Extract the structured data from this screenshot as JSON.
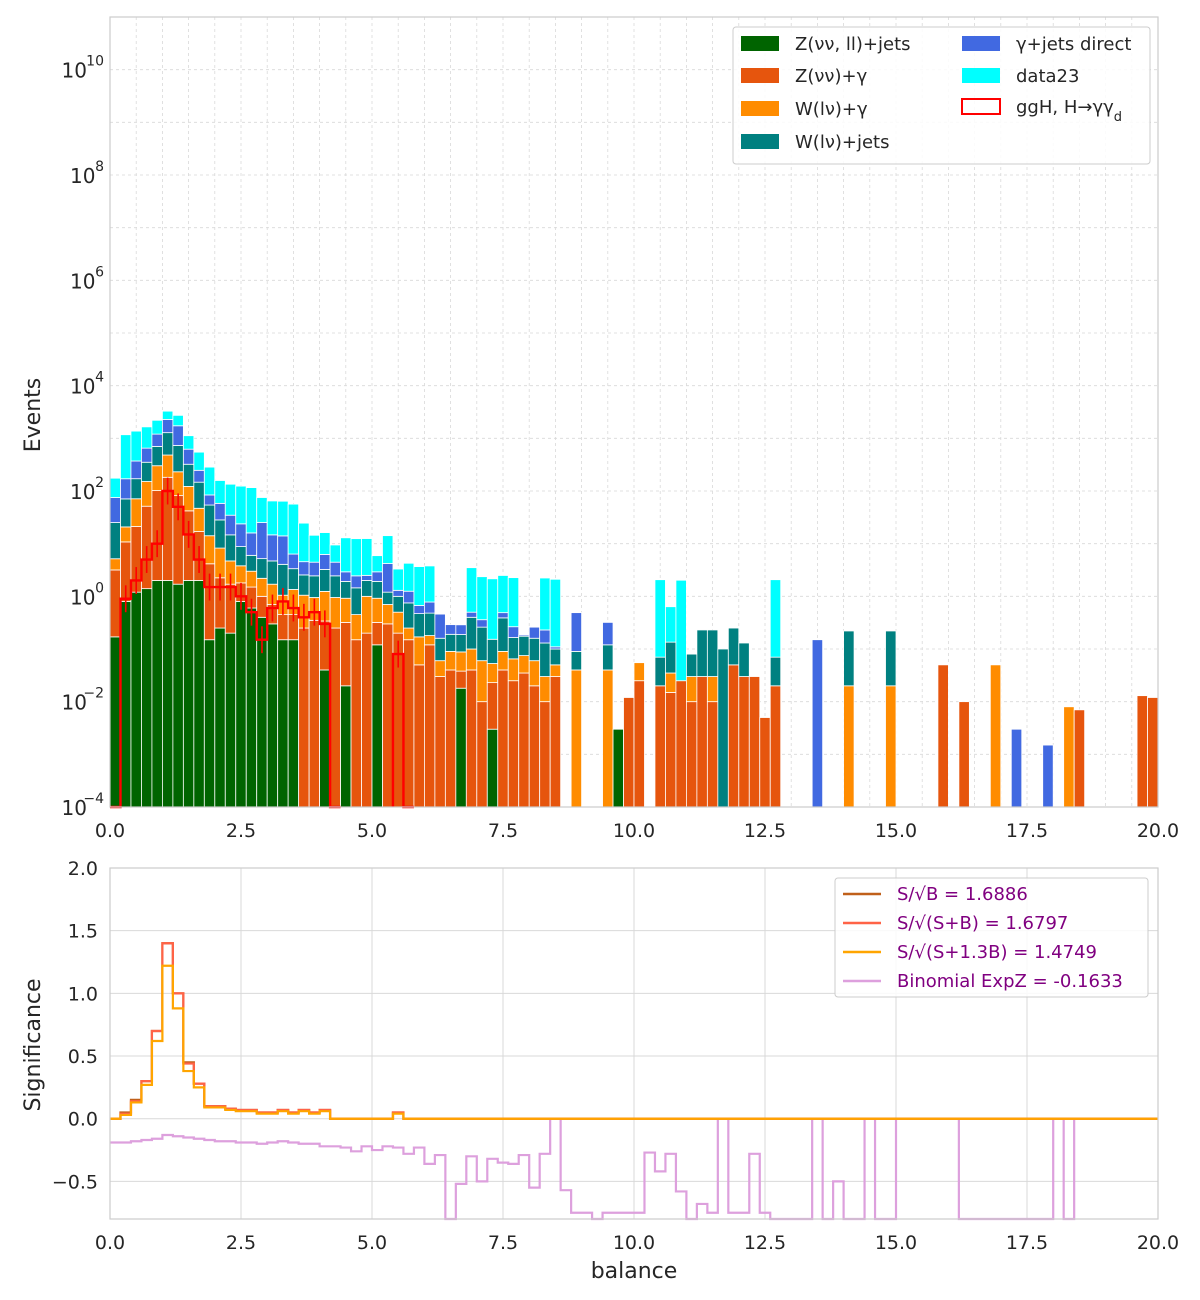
{
  "chart_data": [
    {
      "type": "bar",
      "stacked": true,
      "yscale": "log",
      "ylabel": "Events",
      "xlabel": "",
      "xlim": [
        0,
        20
      ],
      "ylim": [
        0.0001,
        100000000000
      ],
      "bin_width": 0.2,
      "grid": true,
      "legend_position": "top-right",
      "xticks": [
        {
          "value": 0,
          "label": "0.0"
        },
        {
          "value": 2.5,
          "label": "2.5"
        },
        {
          "value": 5,
          "label": "5.0"
        },
        {
          "value": 7.5,
          "label": "7.5"
        },
        {
          "value": 10,
          "label": "10.0"
        },
        {
          "value": 12.5,
          "label": "12.5"
        },
        {
          "value": 15,
          "label": "15.0"
        },
        {
          "value": 17.5,
          "label": "17.5"
        },
        {
          "value": 20,
          "label": "20.0"
        }
      ],
      "yticks": [
        {
          "exp": -4,
          "label": "10",
          "sup": "−4"
        },
        {
          "exp": -2,
          "label": "10",
          "sup": "−2"
        },
        {
          "exp": 0,
          "label": "10",
          "sup": "0"
        },
        {
          "exp": 2,
          "label": "10",
          "sup": "2"
        },
        {
          "exp": 4,
          "label": "10",
          "sup": "4"
        },
        {
          "exp": 6,
          "label": "10",
          "sup": "6"
        },
        {
          "exp": 8,
          "label": "10",
          "sup": "8"
        },
        {
          "exp": 10,
          "label": "10",
          "sup": "10"
        }
      ],
      "legend": [
        {
          "label": "Z(νν, ll)+jets",
          "color": "#006400",
          "kind": "fill"
        },
        {
          "label": "Z(νν)+γ",
          "color": "#e6550d",
          "kind": "fill"
        },
        {
          "label": "W(lν)+γ",
          "color": "#ff8c00",
          "kind": "fill"
        },
        {
          "label": "W(lν)+jets",
          "color": "#008080",
          "kind": "fill"
        },
        {
          "label": "γ+jets direct",
          "color": "#4169e1",
          "kind": "fill"
        },
        {
          "label": "data23",
          "color": "#00ffff",
          "kind": "fill"
        },
        {
          "label": "ggH, H→γγ",
          "color": "#ff0000",
          "kind": "outline",
          "label_sub": "d"
        }
      ],
      "stack_series": [
        {
          "name": "Z(νν, ll)+jets",
          "color": "#006400",
          "bins": {
            "0.0": 0.17,
            "0.2": 0.8,
            "0.4": 1.2,
            "0.6": 1.4,
            "0.8": 2.0,
            "1.0": 2.0,
            "1.2": 1.7,
            "1.4": 2.0,
            "1.6": 2.0,
            "1.8": 0.15,
            "2.0": 0.25,
            "2.2": 0.2,
            "2.4": 0.8,
            "2.6": 0.6,
            "2.8": 0.4,
            "3.0": 0.3,
            "3.2": 0.15,
            "3.4": 0.15,
            "4.0": 0.04,
            "4.4": 0.02,
            "5.0": 0.12,
            "6.6": 0.018,
            "7.2": 0.003,
            "9.6": 0.003
          }
        },
        {
          "name": "Z(νν)+γ",
          "color": "#e6550d",
          "bins": {
            "0.0": 3.0,
            "0.2": 10.0,
            "0.4": 20.0,
            "0.6": 50.0,
            "0.8": 100.0,
            "1.0": 180.0,
            "1.2": 80.0,
            "1.4": 40.0,
            "1.6": 15.0,
            "1.8": 4.0,
            "2.0": 2.0,
            "2.2": 1.5,
            "2.4": 1.0,
            "2.6": 0.9,
            "2.8": 0.6,
            "3.0": 0.4,
            "3.2": 0.3,
            "3.4": 0.3,
            "3.6": 0.25,
            "3.8": 0.35,
            "4.0": 0.3,
            "4.2": 0.25,
            "4.4": 0.3,
            "4.6": 0.15,
            "4.8": 0.2,
            "5.0": 0.2,
            "5.2": 0.3,
            "5.4": 0.2,
            "5.6": 0.15,
            "5.8": 0.05,
            "6.0": 0.12,
            "6.2": 0.03,
            "6.4": 0.04,
            "6.6": 0.02,
            "6.8": 0.04,
            "7.0": 0.01,
            "7.2": 0.02,
            "7.4": 0.04,
            "7.6": 0.025,
            "7.8": 0.035,
            "8.0": 0.02,
            "8.2": 0.01,
            "8.4": 0.03,
            "9.8": 0.012,
            "10.0": 0.025,
            "10.4": 0.02,
            "10.6": 0.015,
            "10.8": 0.025,
            "11.0": 0.01,
            "11.2": 0.03,
            "11.4": 0.01,
            "11.8": 0.05,
            "12.0": 0.03,
            "12.2": 0.03,
            "12.4": 0.005,
            "12.6": 0.02,
            "15.8": 0.05,
            "16.2": 0.01,
            "18.4": 0.007,
            "19.6": 0.013,
            "19.8": 0.012
          }
        },
        {
          "name": "W(lν)+γ",
          "color": "#ff8c00",
          "bins": {
            "0.0": 2.0,
            "0.2": 10.0,
            "0.4": 50.0,
            "0.6": 100.0,
            "0.8": 200.0,
            "1.0": 300.0,
            "1.2": 150.0,
            "1.4": 80.0,
            "1.6": 30.0,
            "1.8": 10.0,
            "2.0": 6.0,
            "2.2": 3.0,
            "2.4": 2.0,
            "2.6": 1.5,
            "2.8": 1.2,
            "3.0": 1.0,
            "3.2": 0.6,
            "3.4": 0.9,
            "3.6": 0.8,
            "3.8": 0.6,
            "4.0": 0.9,
            "4.2": 0.7,
            "4.4": 0.6,
            "4.6": 0.3,
            "4.8": 0.8,
            "5.0": 0.6,
            "5.2": 0.4,
            "5.4": 0.3,
            "5.6": 0.1,
            "5.8": 0.12,
            "6.0": 0.06,
            "6.2": 0.03,
            "6.4": 0.05,
            "6.6": 0.05,
            "6.8": 0.06,
            "7.0": 0.05,
            "7.2": 0.03,
            "7.4": 0.05,
            "7.6": 0.04,
            "7.8": 0.04,
            "8.0": 0.04,
            "8.2": 0.02,
            "8.4": 0.02,
            "8.8": 0.04,
            "9.4": 0.04,
            "10.0": 0.03,
            "10.6": 0.02,
            "11.0": 0.02,
            "11.4": 0.02,
            "14.0": 0.02,
            "14.8": 0.02,
            "16.8": 0.05,
            "18.2": 0.008
          }
        },
        {
          "name": "W(lν)+jets",
          "color": "#008080",
          "bins": {
            "0.0": 20.0,
            "0.2": 50.0,
            "0.4": 100.0,
            "0.6": 200.0,
            "0.8": 400.0,
            "1.0": 800.0,
            "1.2": 500.0,
            "1.4": 200.0,
            "1.6": 100.0,
            "1.8": 40.0,
            "2.0": 20.0,
            "2.2": 10.0,
            "2.4": 5.0,
            "2.6": 3.0,
            "2.8": 3.0,
            "3.0": 3.0,
            "3.2": 3.0,
            "3.4": 2.0,
            "3.6": 1.5,
            "3.8": 1.5,
            "4.0": 2.0,
            "4.2": 1.5,
            "4.4": 1.0,
            "4.6": 1.0,
            "4.8": 1.0,
            "5.0": 1.0,
            "5.2": 0.5,
            "5.4": 0.5,
            "5.6": 0.5,
            "5.8": 0.3,
            "6.0": 0.3,
            "6.2": 0.1,
            "6.4": 0.1,
            "6.6": 0.1,
            "6.8": 0.3,
            "7.0": 0.2,
            "7.2": 0.1,
            "7.4": 0.3,
            "7.6": 0.1,
            "7.8": 0.1,
            "8.0": 0.1,
            "8.2": 0.1,
            "8.4": 0.05,
            "8.8": 0.05,
            "9.4": 0.08,
            "10.4": 0.05,
            "10.6": 0.1,
            "11.0": 0.05,
            "11.2": 0.2,
            "11.4": 0.2,
            "11.6": 0.1,
            "11.8": 0.2,
            "12.0": 0.1,
            "12.6": 0.05,
            "14.0": 0.2,
            "14.8": 0.2
          }
        },
        {
          "name": "γ+jets direct",
          "color": "#4169e1",
          "bins": {
            "0.0": 50.0,
            "0.2": 100.0,
            "0.4": 200.0,
            "0.6": 300.0,
            "0.8": 500.0,
            "1.0": 1000.0,
            "1.2": 1000.0,
            "1.4": 300.0,
            "1.6": 100.0,
            "1.8": 30.0,
            "2.0": 30.0,
            "2.2": 20.0,
            "2.4": 15.0,
            "2.6": 10.0,
            "2.8": 20.0,
            "3.0": 10.0,
            "3.2": 10.0,
            "3.4": 3.0,
            "3.6": 2.0,
            "3.8": 2.0,
            "4.0": 3.0,
            "4.2": 2.0,
            "4.4": 1.0,
            "4.6": 1.0,
            "4.8": 0.5,
            "5.0": 1.0,
            "5.2": 3.0,
            "5.4": 0.3,
            "5.6": 0.5,
            "5.8": 0.2,
            "6.0": 0.3,
            "6.2": 0.3,
            "6.4": 0.1,
            "6.6": 0.1,
            "6.8": 0.1,
            "7.0": 0.1,
            "7.4": 0.1,
            "7.6": 0.1,
            "7.8": 0.01,
            "8.0": 0.1,
            "8.2": 0.1,
            "8.4": 0.01,
            "8.8": 0.4,
            "9.4": 0.2,
            "13.4": 0.15,
            "14.8": 0.0015,
            "17.2": 0.003,
            "17.8": 0.0015
          }
        },
        {
          "name": "data23",
          "color": "#00ffff",
          "bins": {
            "0.0": 100.0,
            "0.2": 1000.0,
            "0.4": 1000.0,
            "0.6": 1000.0,
            "0.8": 1000.0,
            "1.0": 1000.0,
            "1.2": 1000.0,
            "1.4": 500.0,
            "1.6": 300.0,
            "1.8": 200.0,
            "2.0": 100.0,
            "2.2": 100.0,
            "2.4": 100.0,
            "2.6": 100.0,
            "2.8": 50.0,
            "3.0": 50.0,
            "3.2": 50.0,
            "3.4": 50.0,
            "3.6": 20.0,
            "3.8": 10.0,
            "4.0": 10.0,
            "4.2": 5.0,
            "4.4": 10.0,
            "4.6": 10.0,
            "4.8": 10.0,
            "5.0": 3.0,
            "5.2": 10.0,
            "5.4": 2.0,
            "5.6": 3.0,
            "5.8": 3.0,
            "6.0": 3.0,
            "6.2": 0.0,
            "6.4": 0.0,
            "6.6": 0.0,
            "6.8": 3.0,
            "7.0": 2.0,
            "7.2": 2.0,
            "7.4": 2.0,
            "7.6": 2.0,
            "7.8": 0.0,
            "8.0": 0.0,
            "8.2": 2.0,
            "8.4": 2.0,
            "10.4": 2.0,
            "10.6": 0.5,
            "10.8": 2.0,
            "12.6": 2.0
          }
        }
      ],
      "signal_step": {
        "name": "ggH, H→γγ",
        "color": "#ff0000",
        "bins": {
          "0.0": 0.0001,
          "0.2": 0.9,
          "0.4": 2.0,
          "0.6": 5.0,
          "0.8": 10.0,
          "1.0": 100.0,
          "1.2": 50.0,
          "1.4": 15.0,
          "1.6": 5.0,
          "1.8": 1.5,
          "2.0": 1.5,
          "2.2": 1.5,
          "2.4": 1.0,
          "2.6": 0.5,
          "2.8": 0.15,
          "3.0": 0.6,
          "3.2": 0.8,
          "3.4": 0.6,
          "3.6": 0.4,
          "3.8": 0.5,
          "4.0": 0.3,
          "4.2": 0.0001,
          "5.4": 0.08,
          "5.6": 0.0001
        }
      }
    },
    {
      "type": "line",
      "step": true,
      "ylabel": "Significance",
      "xlabel": "balance",
      "xlim": [
        0,
        20
      ],
      "ylim": [
        -0.8,
        2.0
      ],
      "grid": true,
      "legend_position": "top-right",
      "xticks": [
        {
          "value": 0,
          "label": "0.0"
        },
        {
          "value": 2.5,
          "label": "2.5"
        },
        {
          "value": 5,
          "label": "5.0"
        },
        {
          "value": 7.5,
          "label": "7.5"
        },
        {
          "value": 10,
          "label": "10.0"
        },
        {
          "value": 12.5,
          "label": "12.5"
        },
        {
          "value": 15,
          "label": "15.0"
        },
        {
          "value": 17.5,
          "label": "17.5"
        },
        {
          "value": 20,
          "label": "20.0"
        }
      ],
      "yticks": [
        {
          "value": -0.5,
          "label": "−0.5"
        },
        {
          "value": 0.0,
          "label": "0.0"
        },
        {
          "value": 0.5,
          "label": "0.5"
        },
        {
          "value": 1.0,
          "label": "1.0"
        },
        {
          "value": 1.5,
          "label": "1.5"
        },
        {
          "value": 2.0,
          "label": "2.0"
        }
      ],
      "series": [
        {
          "name": "S/√B = 1.6886",
          "color": "#c0601a",
          "x": [
            0.1,
            0.3,
            0.5,
            0.7,
            0.9,
            1.1,
            1.3,
            1.5,
            1.7,
            1.9,
            2.1,
            2.3,
            2.5,
            2.7,
            2.9,
            3.1,
            3.3,
            3.5,
            3.7,
            3.9,
            4.1,
            4.3,
            5.3,
            5.5,
            5.7,
            19.9
          ],
          "y": [
            0.0,
            0.05,
            0.15,
            0.3,
            0.7,
            1.4,
            1.0,
            0.45,
            0.28,
            0.1,
            0.1,
            0.08,
            0.07,
            0.07,
            0.05,
            0.05,
            0.07,
            0.05,
            0.07,
            0.05,
            0.07,
            0.0,
            0.0,
            0.05,
            0.0,
            0.0
          ]
        },
        {
          "name": "S/√(S+B) = 1.6797",
          "color": "#ff6347",
          "x": [
            0.1,
            0.3,
            0.5,
            0.7,
            0.9,
            1.1,
            1.3,
            1.5,
            1.7,
            1.9,
            2.1,
            2.3,
            2.5,
            2.7,
            2.9,
            3.1,
            3.3,
            3.5,
            3.7,
            3.9,
            4.1,
            4.3,
            5.3,
            5.5,
            5.7,
            19.9
          ],
          "y": [
            0.0,
            0.04,
            0.14,
            0.3,
            0.7,
            1.4,
            1.0,
            0.44,
            0.28,
            0.1,
            0.1,
            0.08,
            0.07,
            0.07,
            0.05,
            0.05,
            0.07,
            0.05,
            0.07,
            0.05,
            0.07,
            0.0,
            0.0,
            0.05,
            0.0,
            0.0
          ]
        },
        {
          "name": "S/√(S+1.3B) = 1.4749",
          "color": "#ffa500",
          "x": [
            0.1,
            0.3,
            0.5,
            0.7,
            0.9,
            1.1,
            1.3,
            1.5,
            1.7,
            1.9,
            2.1,
            2.3,
            2.5,
            2.7,
            2.9,
            3.1,
            3.3,
            3.5,
            3.7,
            3.9,
            4.1,
            4.3,
            5.3,
            5.5,
            5.7,
            19.9
          ],
          "y": [
            0.0,
            0.03,
            0.13,
            0.27,
            0.62,
            1.22,
            0.88,
            0.38,
            0.25,
            0.09,
            0.09,
            0.07,
            0.06,
            0.06,
            0.04,
            0.04,
            0.06,
            0.04,
            0.06,
            0.04,
            0.06,
            0.0,
            0.0,
            0.04,
            0.0,
            0.0
          ]
        },
        {
          "name": "Binomial ExpZ = -0.1633",
          "color": "#dda0dd",
          "x": [
            0.1,
            0.5,
            0.7,
            0.9,
            1.1,
            1.3,
            1.5,
            1.7,
            1.9,
            2.1,
            2.5,
            2.7,
            2.9,
            3.1,
            3.3,
            3.5,
            3.7,
            3.9,
            4.1,
            4.3,
            4.5,
            4.7,
            4.9,
            5.1,
            5.3,
            5.5,
            5.7,
            5.9,
            6.1,
            6.3,
            6.5,
            6.7,
            6.9,
            7.1,
            7.3,
            7.5,
            7.7,
            7.9,
            8.1,
            8.3,
            8.5,
            8.7,
            8.9,
            9.1,
            9.3,
            9.5,
            9.7,
            9.9,
            10.1,
            10.3,
            10.5,
            10.7,
            10.9,
            11.1,
            11.3,
            11.5,
            11.7,
            11.9,
            12.1,
            12.3,
            12.5,
            12.7,
            12.9,
            13.1,
            13.3,
            13.5,
            13.7,
            13.9,
            14.1,
            14.3,
            14.5,
            14.7,
            14.9,
            15.1,
            16.3,
            16.5,
            16.7,
            18.1,
            18.3,
            18.5,
            18.7,
            19.3,
            19.5,
            19.9
          ],
          "y": [
            -0.19,
            -0.18,
            -0.17,
            -0.16,
            -0.13,
            -0.14,
            -0.15,
            -0.16,
            -0.17,
            -0.18,
            -0.19,
            -0.19,
            -0.2,
            -0.19,
            -0.18,
            -0.19,
            -0.2,
            -0.2,
            -0.22,
            -0.22,
            -0.23,
            -0.26,
            -0.22,
            -0.25,
            -0.22,
            -0.23,
            -0.28,
            -0.23,
            -0.36,
            -0.29,
            -0.8,
            -0.52,
            -0.3,
            -0.5,
            -0.32,
            -0.35,
            -0.36,
            -0.29,
            -0.55,
            -0.28,
            0.0,
            -0.57,
            -0.75,
            -0.75,
            -0.8,
            -0.75,
            -0.75,
            -0.75,
            -0.75,
            -0.27,
            -0.42,
            -0.28,
            -0.58,
            -0.8,
            -0.68,
            -0.75,
            0.0,
            -0.75,
            -0.75,
            -0.28,
            -0.75,
            -0.8,
            -0.8,
            -0.8,
            -0.8,
            0.0,
            -0.8,
            -0.5,
            -0.8,
            -0.8,
            0.0,
            -0.8,
            -0.8,
            0.0,
            -0.8,
            -0.8,
            -0.8,
            0.0,
            -0.8,
            0.0,
            0.0,
            0.0,
            0.0,
            0.0
          ]
        }
      ]
    }
  ]
}
